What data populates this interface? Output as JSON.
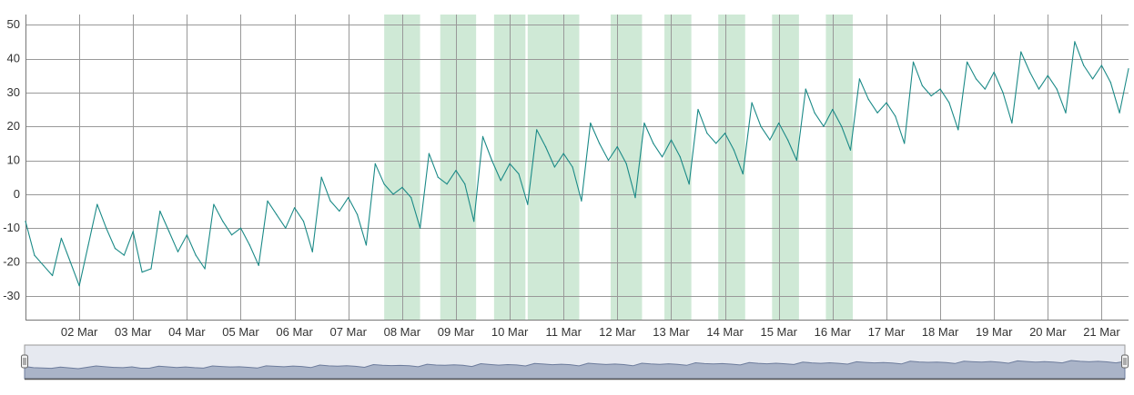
{
  "chart_data": {
    "type": "line",
    "title": "",
    "xlabel": "",
    "ylabel": "",
    "x_range": [
      "2024-03-01T00:00",
      "2024-03-21T12:00"
    ],
    "ylim": [
      -37,
      53
    ],
    "y_ticks": [
      -30,
      -20,
      -10,
      0,
      10,
      20,
      30,
      40,
      50
    ],
    "x_ticks": [
      {
        "date": "2024-03-02",
        "label": "02 Mar"
      },
      {
        "date": "2024-03-03",
        "label": "03 Mar"
      },
      {
        "date": "2024-03-04",
        "label": "04 Mar"
      },
      {
        "date": "2024-03-05",
        "label": "05 Mar"
      },
      {
        "date": "2024-03-06",
        "label": "06 Mar"
      },
      {
        "date": "2024-03-07",
        "label": "07 Mar"
      },
      {
        "date": "2024-03-08",
        "label": "08 Mar"
      },
      {
        "date": "2024-03-09",
        "label": "09 Mar"
      },
      {
        "date": "2024-03-10",
        "label": "10 Mar"
      },
      {
        "date": "2024-03-11",
        "label": "11 Mar"
      },
      {
        "date": "2024-03-12",
        "label": "12 Mar"
      },
      {
        "date": "2024-03-13",
        "label": "13 Mar"
      },
      {
        "date": "2024-03-14",
        "label": "14 Mar"
      },
      {
        "date": "2024-03-15",
        "label": "15 Mar"
      },
      {
        "date": "2024-03-16",
        "label": "16 Mar"
      },
      {
        "date": "2024-03-17",
        "label": "17 Mar"
      },
      {
        "date": "2024-03-18",
        "label": "18 Mar"
      },
      {
        "date": "2024-03-19",
        "label": "19 Mar"
      },
      {
        "date": "2024-03-20",
        "label": "20 Mar"
      },
      {
        "date": "2024-03-21",
        "label": "21 Mar"
      }
    ],
    "grid": true,
    "legend": "none",
    "highlight_bands": [
      [
        "2024-03-07T16:00",
        "2024-03-08T08:00"
      ],
      [
        "2024-03-08T17:00",
        "2024-03-09T09:00"
      ],
      [
        "2024-03-09T17:00",
        "2024-03-10T07:00"
      ],
      [
        "2024-03-10T08:00",
        "2024-03-11T07:00"
      ],
      [
        "2024-03-11T21:00",
        "2024-03-12T11:00"
      ],
      [
        "2024-03-12T21:00",
        "2024-03-13T09:00"
      ],
      [
        "2024-03-13T21:00",
        "2024-03-14T09:00"
      ],
      [
        "2024-03-14T21:00",
        "2024-03-15T09:00"
      ],
      [
        "2024-03-15T21:00",
        "2024-03-16T09:00"
      ]
    ],
    "series": [
      {
        "x": [
          "2024-03-01T00:00",
          "2024-03-01T04:00",
          "2024-03-01T08:00",
          "2024-03-01T12:00",
          "2024-03-01T16:00",
          "2024-03-01T20:00",
          "2024-03-02T00:00",
          "2024-03-02T04:00",
          "2024-03-02T08:00",
          "2024-03-02T12:00",
          "2024-03-02T16:00",
          "2024-03-02T20:00",
          "2024-03-03T00:00",
          "2024-03-03T04:00",
          "2024-03-03T08:00",
          "2024-03-03T12:00",
          "2024-03-03T16:00",
          "2024-03-03T20:00",
          "2024-03-04T00:00",
          "2024-03-04T04:00",
          "2024-03-04T08:00",
          "2024-03-04T12:00",
          "2024-03-04T16:00",
          "2024-03-04T20:00",
          "2024-03-05T00:00",
          "2024-03-05T04:00",
          "2024-03-05T08:00",
          "2024-03-05T12:00",
          "2024-03-05T16:00",
          "2024-03-05T20:00",
          "2024-03-06T00:00",
          "2024-03-06T04:00",
          "2024-03-06T08:00",
          "2024-03-06T12:00",
          "2024-03-06T16:00",
          "2024-03-06T20:00",
          "2024-03-07T00:00",
          "2024-03-07T04:00",
          "2024-03-07T08:00",
          "2024-03-07T12:00",
          "2024-03-07T16:00",
          "2024-03-07T20:00",
          "2024-03-08T00:00",
          "2024-03-08T04:00",
          "2024-03-08T08:00",
          "2024-03-08T12:00",
          "2024-03-08T16:00",
          "2024-03-08T20:00",
          "2024-03-09T00:00",
          "2024-03-09T04:00",
          "2024-03-09T08:00",
          "2024-03-09T12:00",
          "2024-03-09T16:00",
          "2024-03-09T20:00",
          "2024-03-10T00:00",
          "2024-03-10T04:00",
          "2024-03-10T08:00",
          "2024-03-10T12:00",
          "2024-03-10T16:00",
          "2024-03-10T20:00",
          "2024-03-11T00:00",
          "2024-03-11T04:00",
          "2024-03-11T08:00",
          "2024-03-11T12:00",
          "2024-03-11T16:00",
          "2024-03-11T20:00",
          "2024-03-12T00:00",
          "2024-03-12T04:00",
          "2024-03-12T08:00",
          "2024-03-12T12:00",
          "2024-03-12T16:00",
          "2024-03-12T20:00",
          "2024-03-13T00:00",
          "2024-03-13T04:00",
          "2024-03-13T08:00",
          "2024-03-13T12:00",
          "2024-03-13T16:00",
          "2024-03-13T20:00",
          "2024-03-14T00:00",
          "2024-03-14T04:00",
          "2024-03-14T08:00",
          "2024-03-14T12:00",
          "2024-03-14T16:00",
          "2024-03-14T20:00",
          "2024-03-15T00:00",
          "2024-03-15T04:00",
          "2024-03-15T08:00",
          "2024-03-15T12:00",
          "2024-03-15T16:00",
          "2024-03-15T20:00",
          "2024-03-16T00:00",
          "2024-03-16T04:00",
          "2024-03-16T08:00",
          "2024-03-16T12:00",
          "2024-03-16T16:00",
          "2024-03-16T20:00",
          "2024-03-17T00:00",
          "2024-03-17T04:00",
          "2024-03-17T08:00",
          "2024-03-17T12:00",
          "2024-03-17T16:00",
          "2024-03-17T20:00",
          "2024-03-18T00:00",
          "2024-03-18T04:00",
          "2024-03-18T08:00",
          "2024-03-18T12:00",
          "2024-03-18T16:00",
          "2024-03-18T20:00",
          "2024-03-19T00:00",
          "2024-03-19T04:00",
          "2024-03-19T08:00",
          "2024-03-19T12:00",
          "2024-03-19T16:00",
          "2024-03-19T20:00",
          "2024-03-20T00:00",
          "2024-03-20T04:00",
          "2024-03-20T08:00",
          "2024-03-20T12:00",
          "2024-03-20T16:00",
          "2024-03-20T20:00",
          "2024-03-21T00:00",
          "2024-03-21T04:00",
          "2024-03-21T08:00",
          "2024-03-21T12:00"
        ],
        "values": [
          -8,
          -18,
          -21,
          -24,
          -13,
          -20,
          -27,
          -15,
          -3,
          -10,
          -16,
          -18,
          -11,
          -23,
          -22,
          -5,
          -11,
          -17,
          -12,
          -18,
          -22,
          -3,
          -8,
          -12,
          -10,
          -15,
          -21,
          -2,
          -6,
          -10,
          -4,
          -8,
          -17,
          5,
          -2,
          -5,
          -1,
          -6,
          -15,
          9,
          3,
          0,
          2,
          -1,
          -10,
          12,
          5,
          3,
          7,
          3,
          -8,
          17,
          10,
          4,
          9,
          6,
          -3,
          19,
          14,
          8,
          12,
          8,
          -2,
          21,
          15,
          10,
          14,
          9,
          -1,
          21,
          15,
          11,
          16,
          11,
          3,
          25,
          18,
          15,
          18,
          13,
          6,
          27,
          20,
          16,
          21,
          16,
          10,
          31,
          24,
          20,
          25,
          20,
          13,
          34,
          28,
          24,
          27,
          23,
          15,
          39,
          32,
          29,
          31,
          27,
          19,
          39,
          34,
          31,
          36,
          30,
          21,
          42,
          36,
          31,
          35,
          31,
          24,
          45,
          38,
          34,
          38,
          33,
          24,
          37
        ],
        "color": "#1b8a87"
      }
    ],
    "band_color": "#cfe9d6",
    "navigator": {
      "fill_color": "#aab4c8",
      "line_color": "#6d7c9c",
      "mask_color": "#e6e9f0"
    }
  }
}
